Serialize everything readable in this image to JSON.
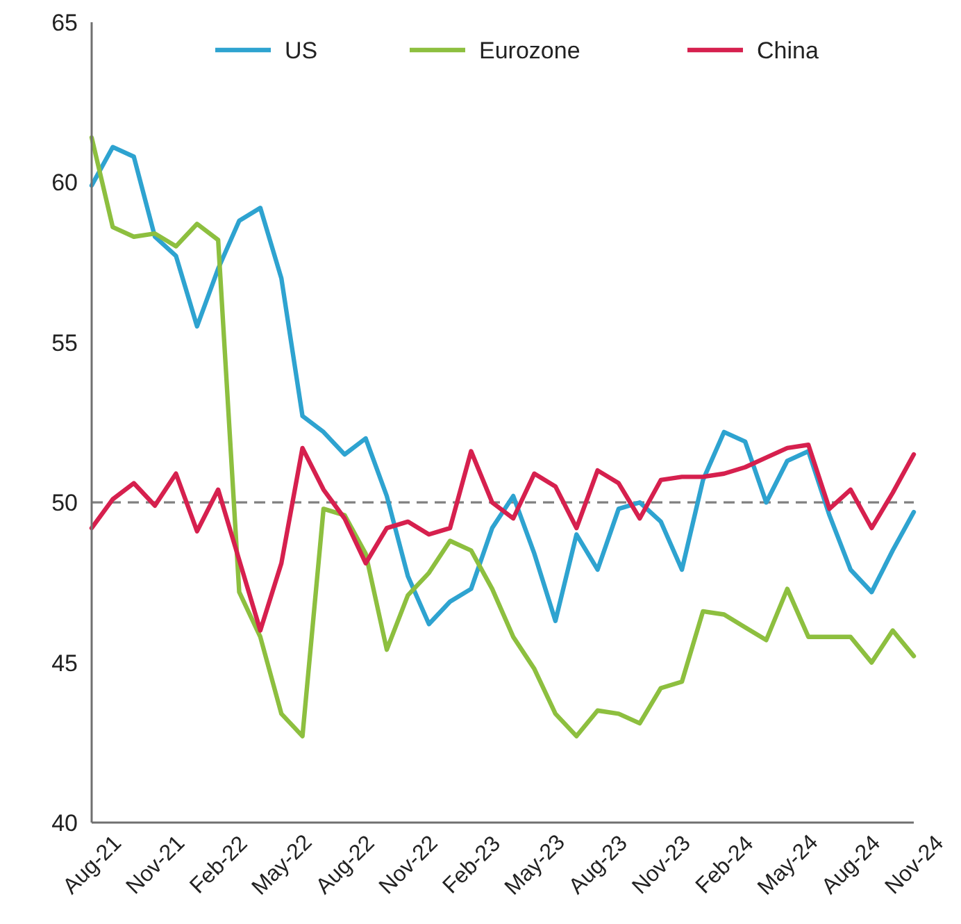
{
  "chart_data": {
    "type": "line",
    "categories": [
      "Aug-21",
      null,
      null,
      "Nov-21",
      null,
      null,
      "Feb-22",
      null,
      null,
      "May-22",
      null,
      null,
      "Aug-22",
      null,
      null,
      "Nov-22",
      null,
      null,
      "Feb-23",
      null,
      null,
      "May-23",
      null,
      null,
      "Aug-23",
      null,
      null,
      "Nov-23",
      null,
      null,
      "Feb-24",
      null,
      null,
      "May-24",
      null,
      null,
      "Aug-24",
      null,
      null,
      "Nov-24"
    ],
    "series": [
      {
        "name": "US",
        "color": "#2ea3d0",
        "values": [
          59.9,
          61.1,
          60.8,
          58.3,
          57.7,
          55.5,
          57.3,
          58.8,
          59.2,
          57.0,
          52.7,
          52.2,
          51.5,
          52.0,
          50.2,
          47.7,
          46.2,
          46.9,
          47.3,
          49.2,
          50.2,
          48.4,
          46.3,
          49.0,
          47.9,
          49.8,
          50.0,
          49.4,
          47.9,
          50.7,
          52.2,
          51.9,
          50.0,
          51.3,
          51.6,
          49.6,
          47.9,
          47.2,
          48.5,
          49.7
        ]
      },
      {
        "name": "Eurozone",
        "color": "#8dbf3f",
        "values": [
          61.4,
          58.6,
          58.3,
          58.4,
          58.0,
          58.7,
          58.2,
          47.2,
          45.8,
          43.4,
          42.7,
          49.8,
          49.6,
          48.4,
          45.4,
          47.1,
          47.8,
          48.8,
          48.5,
          47.3,
          45.8,
          44.8,
          43.4,
          42.7,
          43.5,
          43.4,
          43.1,
          44.2,
          44.4,
          46.6,
          46.5,
          46.1,
          45.7,
          47.3,
          45.8,
          45.8,
          45.8,
          45.0,
          46.0,
          45.2
        ]
      },
      {
        "name": "China",
        "color": "#d6204e",
        "values": [
          49.2,
          50.1,
          50.6,
          49.9,
          50.9,
          49.1,
          50.4,
          48.2,
          46.0,
          48.1,
          51.7,
          50.4,
          49.5,
          48.1,
          49.2,
          49.4,
          49.0,
          49.2,
          51.6,
          50.0,
          49.5,
          50.9,
          50.5,
          49.2,
          51.0,
          50.6,
          49.5,
          50.7,
          50.8,
          50.8,
          50.9,
          51.1,
          51.4,
          51.7,
          51.8,
          49.8,
          50.4,
          49.2,
          50.3,
          51.5
        ]
      }
    ],
    "ylim": [
      40,
      65
    ],
    "yticks": [
      40,
      45,
      50,
      55,
      60,
      65
    ],
    "grid": false,
    "legend": "top",
    "marker": "none",
    "line_style": "solid",
    "ref_lines": [
      {
        "axis": "y",
        "value": 50,
        "color": "#808080",
        "line_style": "dashed"
      }
    ]
  }
}
